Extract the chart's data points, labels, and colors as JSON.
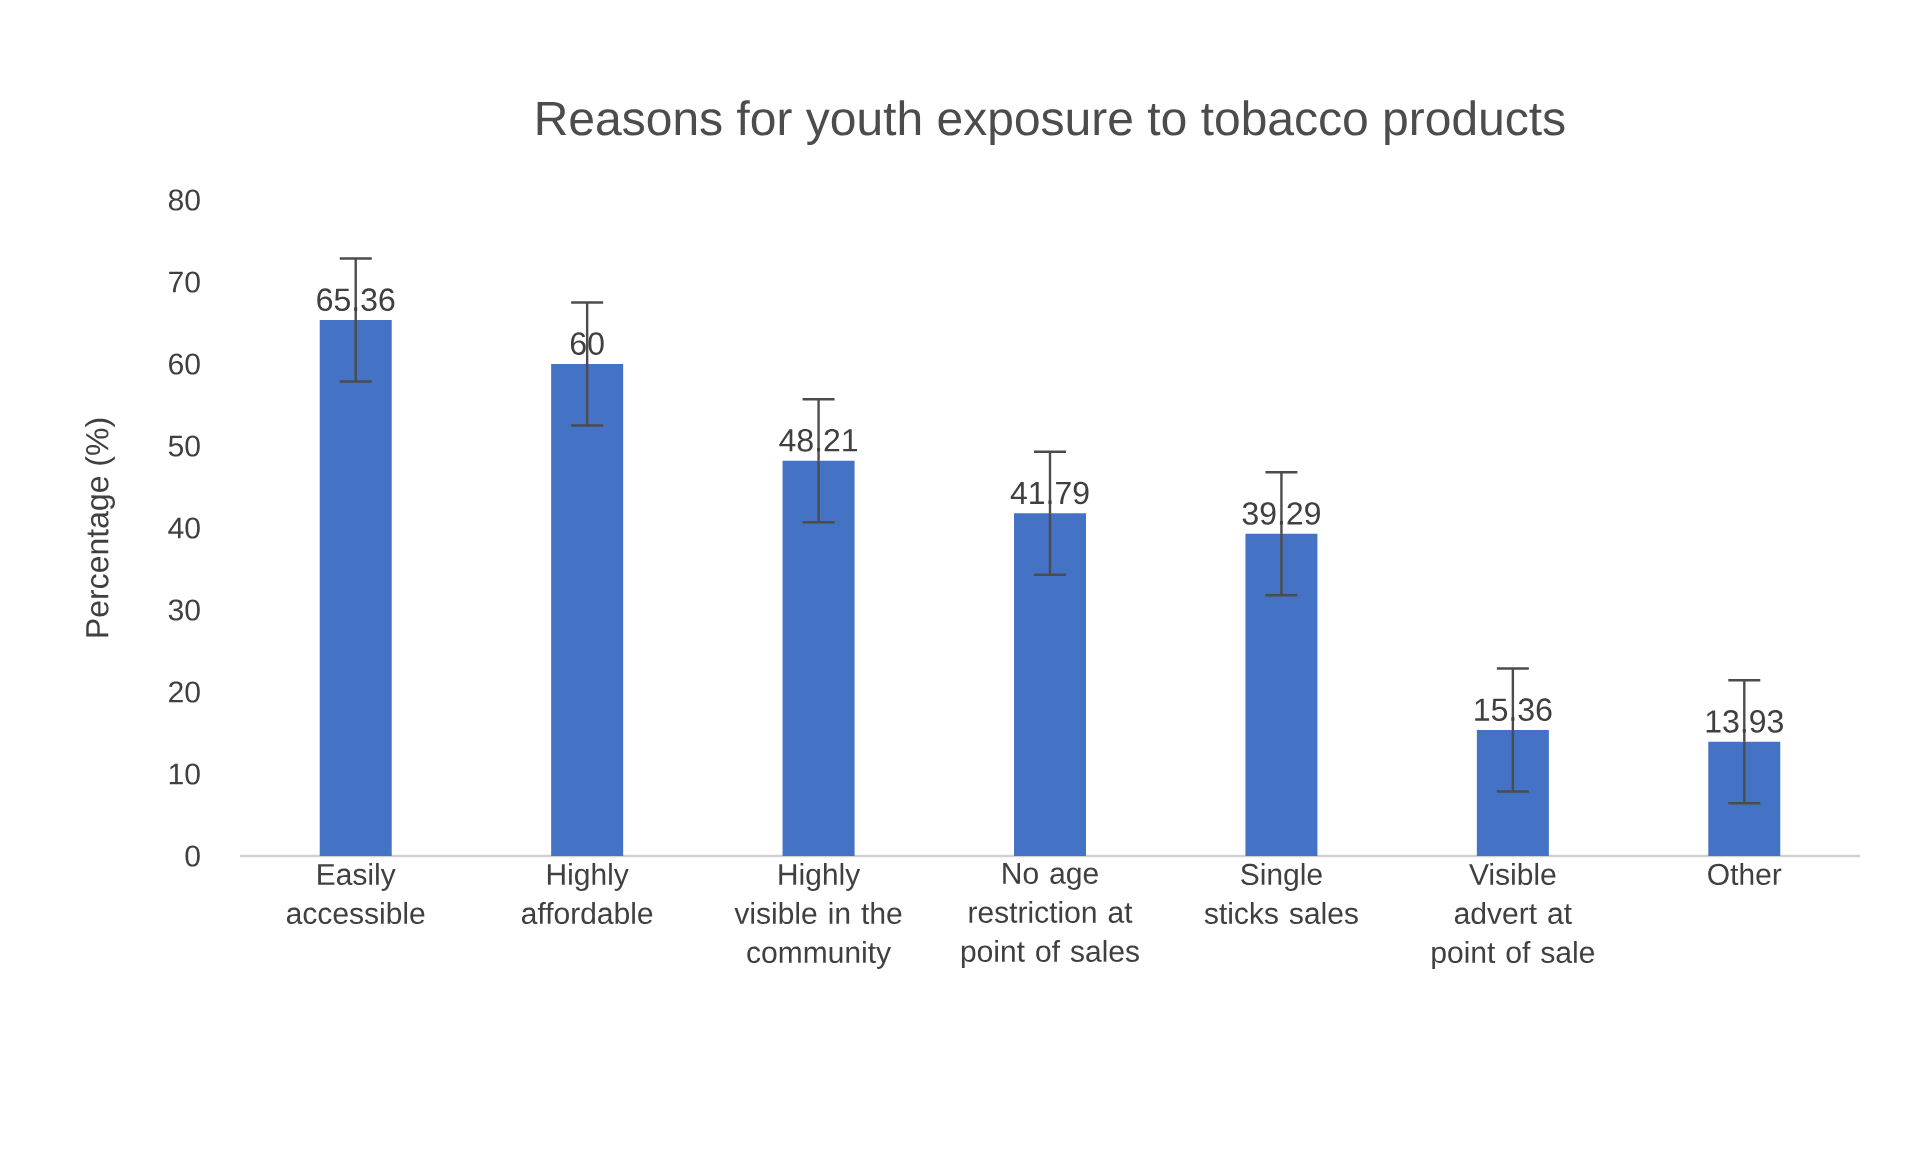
{
  "chart_data": {
    "type": "bar",
    "title": "Reasons for youth exposure to tobacco products",
    "ylabel": "Percentage (%)",
    "categories": [
      "Easily accessible",
      "Highly affordable",
      "Highly visible in the community",
      "No age restriction at point of sales",
      "Single sticks sales",
      "Visible advert at point of sale",
      "Other"
    ],
    "values": [
      65.36,
      60,
      48.21,
      41.79,
      39.29,
      15.36,
      13.93
    ],
    "errors": [
      7.5,
      7.5,
      7.5,
      7.5,
      7.5,
      7.5,
      7.5
    ],
    "color": "#4472c4",
    "ylim": [
      0,
      80
    ],
    "yticks": [
      0,
      10,
      20,
      30,
      40,
      50,
      60,
      70,
      80
    ],
    "data_labels": true
  }
}
